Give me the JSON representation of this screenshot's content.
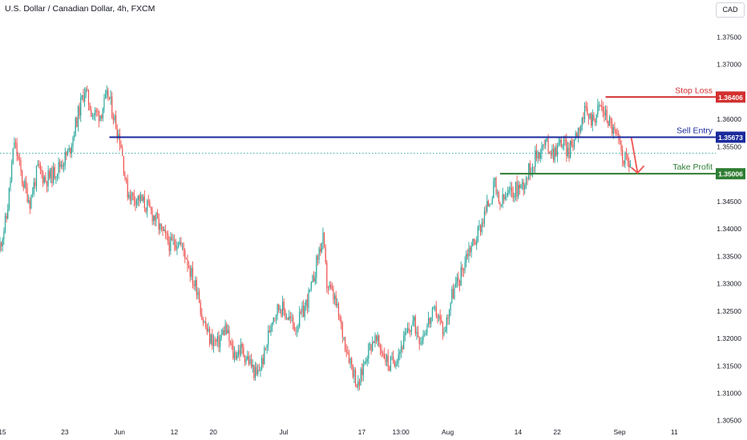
{
  "header": {
    "title": "U.S. Dollar / Canadian Dollar, 4h, FXCM",
    "currency_button": "CAD"
  },
  "colors": {
    "up": "#26a69a",
    "down": "#ef5350",
    "stop_loss": "#d32f2f",
    "entry": "#1a2a9c",
    "take_profit": "#2e7d32",
    "last_price_line": "#26a69a",
    "axis_text": "#131722"
  },
  "chart_data": {
    "type": "candlestick",
    "title": "U.S. Dollar / Canadian Dollar, 4h, FXCM",
    "xlabel": "",
    "ylabel": "",
    "ylim": [
      1.3035,
      1.379
    ],
    "y_ticks": [
      1.375,
      1.37,
      1.365,
      1.36,
      1.355,
      1.35,
      1.345,
      1.34,
      1.335,
      1.33,
      1.325,
      1.32,
      1.315,
      1.31,
      1.305
    ],
    "y_tick_labels": [
      "1.37500",
      "1.37000",
      "1.36500",
      "1.36000",
      "1.35500",
      "1.35000",
      "1.34500",
      "1.34000",
      "1.33500",
      "1.33000",
      "1.32500",
      "1.32000",
      "1.31500",
      "1.31000",
      "1.30500"
    ],
    "x_ticks": [
      {
        "label": "15",
        "x": 0.3
      },
      {
        "label": "23",
        "x": 8.3
      },
      {
        "label": "Jun",
        "x": 15.3
      },
      {
        "label": "12",
        "x": 22.3
      },
      {
        "label": "20",
        "x": 27.3
      },
      {
        "label": "Jul",
        "x": 36.3
      },
      {
        "label": "17",
        "x": 46.3
      },
      {
        "label": "13:00",
        "x": 51.3
      },
      {
        "label": "Aug",
        "x": 57.3
      },
      {
        "label": "14",
        "x": 66.3
      },
      {
        "label": "22",
        "x": 71.3
      },
      {
        "label": "Sep",
        "x": 79.3
      },
      {
        "label": "11",
        "x": 86.3
      }
    ],
    "x_range": [
      0,
      91.6
    ],
    "bars_per_unit": 6,
    "anchors": [
      [
        0,
        1.336
      ],
      [
        1,
        1.342
      ],
      [
        2,
        1.356
      ],
      [
        3,
        1.349
      ],
      [
        4,
        1.345
      ],
      [
        5,
        1.351
      ],
      [
        6,
        1.349
      ],
      [
        7,
        1.35
      ],
      [
        8,
        1.352
      ],
      [
        9,
        1.354
      ],
      [
        10,
        1.36
      ],
      [
        11,
        1.3655
      ],
      [
        12,
        1.361
      ],
      [
        13,
        1.361
      ],
      [
        14,
        1.3645
      ],
      [
        15,
        1.359
      ],
      [
        15.6,
        1.356
      ],
      [
        16.4,
        1.347
      ],
      [
        17,
        1.346
      ],
      [
        18,
        1.3455
      ],
      [
        19,
        1.344
      ],
      [
        20,
        1.342
      ],
      [
        21,
        1.339
      ],
      [
        22,
        1.337
      ],
      [
        23,
        1.338
      ],
      [
        24,
        1.335
      ],
      [
        25,
        1.33
      ],
      [
        25.5,
        1.329
      ],
      [
        26,
        1.324
      ],
      [
        27,
        1.32
      ],
      [
        28,
        1.319
      ],
      [
        29,
        1.322
      ],
      [
        30,
        1.317
      ],
      [
        31,
        1.318
      ],
      [
        32,
        1.316
      ],
      [
        33,
        1.313
      ],
      [
        34,
        1.317
      ],
      [
        35,
        1.324
      ],
      [
        36,
        1.326
      ],
      [
        37,
        1.324
      ],
      [
        38,
        1.322
      ],
      [
        39,
        1.325
      ],
      [
        40,
        1.329
      ],
      [
        41,
        1.336
      ],
      [
        41.5,
        1.338
      ],
      [
        42,
        1.33
      ],
      [
        43,
        1.327
      ],
      [
        44,
        1.321
      ],
      [
        45,
        1.316
      ],
      [
        46,
        1.311
      ],
      [
        47,
        1.317
      ],
      [
        48,
        1.32
      ],
      [
        49,
        1.318
      ],
      [
        50,
        1.315
      ],
      [
        51,
        1.317
      ],
      [
        52,
        1.32
      ],
      [
        53,
        1.323
      ],
      [
        54,
        1.32
      ],
      [
        55,
        1.323
      ],
      [
        56,
        1.325
      ],
      [
        57,
        1.321
      ],
      [
        58,
        1.328
      ],
      [
        59,
        1.331
      ],
      [
        60,
        1.336
      ],
      [
        61,
        1.338
      ],
      [
        62,
        1.342
      ],
      [
        63,
        1.346
      ],
      [
        63.5,
        1.348
      ],
      [
        64,
        1.344
      ],
      [
        65,
        1.346
      ],
      [
        66,
        1.347
      ],
      [
        67,
        1.348
      ],
      [
        68,
        1.351
      ],
      [
        69,
        1.354
      ],
      [
        70,
        1.3555
      ],
      [
        71,
        1.354
      ],
      [
        72,
        1.356
      ],
      [
        73,
        1.354
      ],
      [
        74,
        1.358
      ],
      [
        75,
        1.361
      ],
      [
        76,
        1.36
      ],
      [
        77,
        1.3625
      ],
      [
        78,
        1.36
      ],
      [
        79,
        1.357
      ],
      [
        80,
        1.353
      ],
      [
        80.7,
        1.352
      ]
    ],
    "price_levels": [
      {
        "name": "Stop Loss",
        "label": "Stop Loss",
        "value": 1.36406,
        "value_label": "1.36406",
        "color": "#d32f2f",
        "x_start": 77.5
      },
      {
        "name": "Sell Entry",
        "label": "Sell Entry",
        "value": 1.35673,
        "value_label": "1.35673",
        "color": "#1a2a9c",
        "x_start": 14.0
      },
      {
        "name": "Take Profit",
        "label": "Take Profit",
        "value": 1.35006,
        "value_label": "1.35006",
        "color": "#2e7d32",
        "x_start": 64.0
      }
    ],
    "last_price": 1.3538,
    "arrow": {
      "x_from": 80.8,
      "y_from": 1.3566,
      "x_to": 81.6,
      "y_to": 1.3502,
      "color": "#ef5350"
    }
  }
}
